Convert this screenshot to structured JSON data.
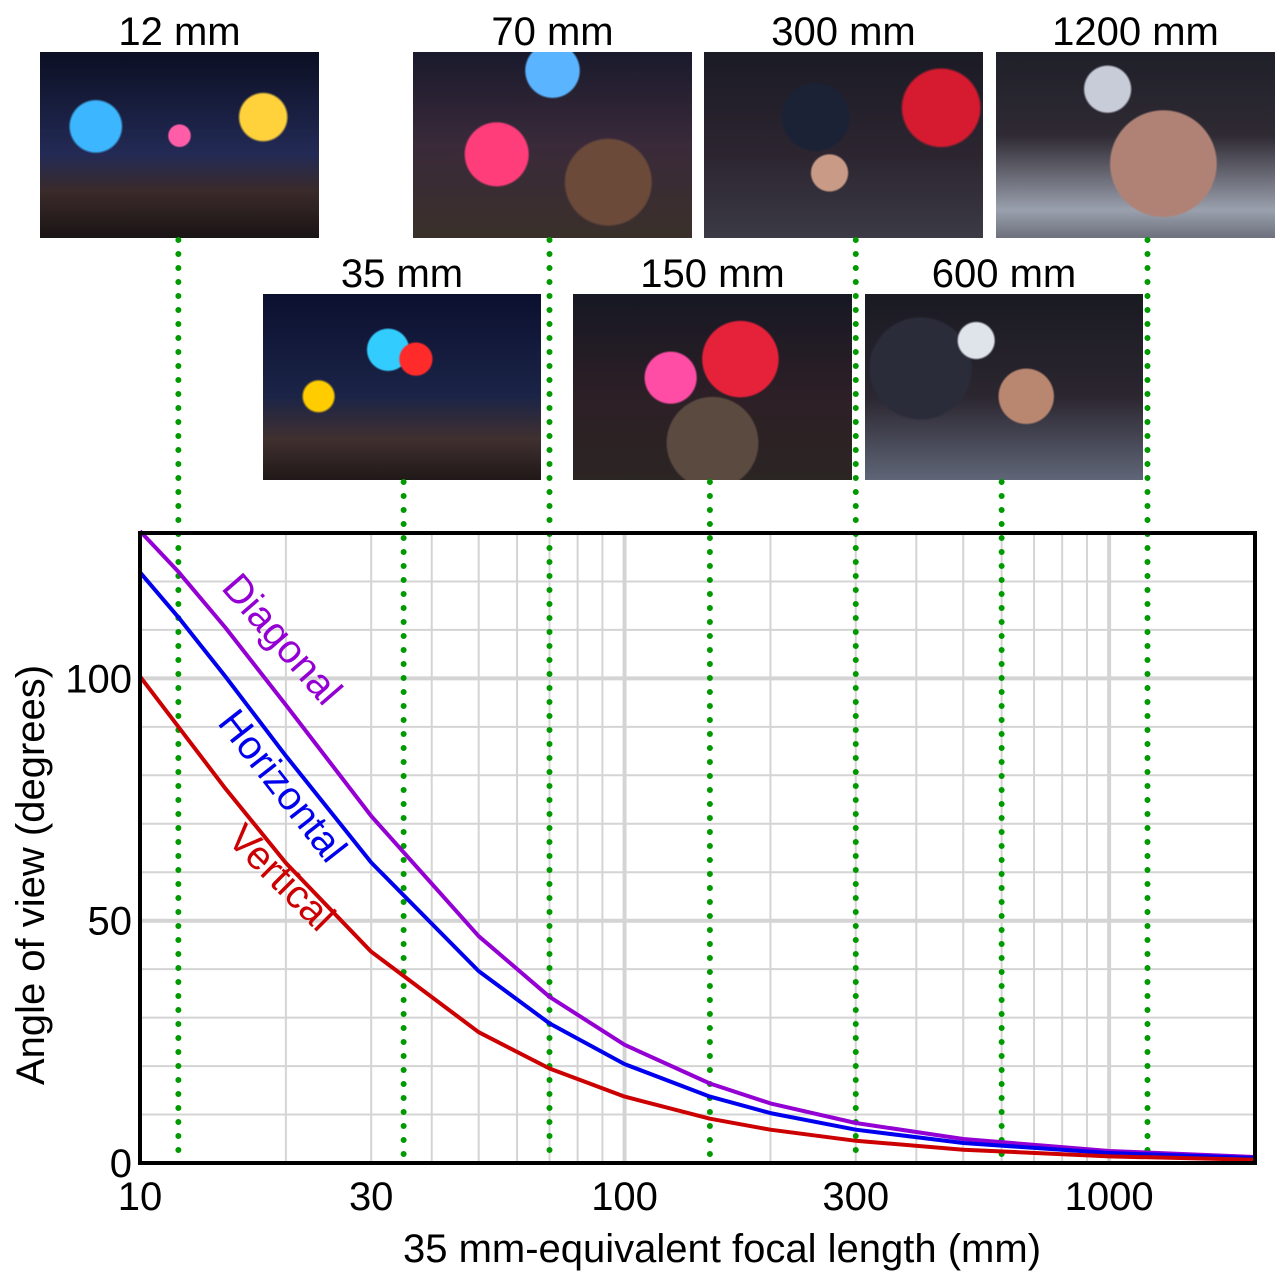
{
  "thumbnails": [
    {
      "label": "12 mm",
      "focal": 12
    },
    {
      "label": "35 mm",
      "focal": 35
    },
    {
      "label": "70 mm",
      "focal": 70
    },
    {
      "label": "150 mm",
      "focal": 150
    },
    {
      "label": "300 mm",
      "focal": 300
    },
    {
      "label": "600 mm",
      "focal": 600
    },
    {
      "label": "1200 mm",
      "focal": 1200
    }
  ],
  "chart_data": {
    "type": "line",
    "title": "",
    "xlabel": "35 mm-equivalent focal length (mm)",
    "ylabel": "Angle of view (degrees)",
    "xscale": "log",
    "xlim": [
      10,
      2000
    ],
    "ylim": [
      0,
      130
    ],
    "xticks": [
      10,
      30,
      100,
      300,
      1000
    ],
    "xtick_labels": [
      "10",
      "30",
      "100",
      "300",
      "1000"
    ],
    "yticks": [
      0,
      50,
      100
    ],
    "ytick_labels": [
      "0",
      "50",
      "100"
    ],
    "grid": true,
    "x": [
      10,
      12,
      15,
      20,
      30,
      50,
      70,
      100,
      150,
      200,
      300,
      500,
      1000,
      2000
    ],
    "series": [
      {
        "name": "Diagonal",
        "color": "#9400D3",
        "values": [
          130.4,
          122.0,
          110.5,
          94.5,
          71.6,
          46.8,
          34.3,
          24.4,
          16.4,
          12.3,
          8.25,
          4.95,
          2.48,
          1.24
        ]
      },
      {
        "name": "Horizontal",
        "color": "#0000EE",
        "values": [
          121.9,
          112.6,
          100.4,
          84.0,
          62.0,
          39.6,
          28.8,
          20.4,
          13.7,
          10.3,
          6.87,
          4.12,
          2.06,
          1.03
        ]
      },
      {
        "name": "Vertical",
        "color": "#CC0000",
        "values": [
          100.4,
          90.0,
          77.3,
          61.9,
          43.6,
          27.0,
          19.5,
          13.7,
          9.15,
          6.87,
          4.58,
          2.75,
          1.37,
          0.69
        ]
      }
    ],
    "reference_lines": [
      12,
      35,
      70,
      150,
      300,
      600,
      1200
    ],
    "reference_color": "#009900"
  }
}
